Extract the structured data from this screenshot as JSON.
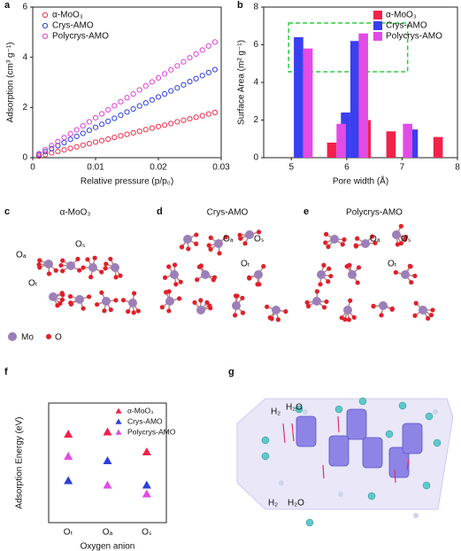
{
  "chart_data": [
    {
      "type": "line",
      "label": "a",
      "xlabel": "Relative pressure (p/p₀)",
      "ylabel": "Adsorption (cm³ g⁻¹)",
      "xlim": [
        0,
        0.03
      ],
      "xticks": [
        0,
        0.01,
        0.02,
        0.03
      ],
      "ylim": [
        0,
        6
      ],
      "yticks": [
        0,
        2,
        4,
        6
      ],
      "legend": "upper left",
      "x": [
        0.001,
        0.002,
        0.003,
        0.004,
        0.005,
        0.006,
        0.007,
        0.008,
        0.009,
        0.01,
        0.011,
        0.012,
        0.013,
        0.014,
        0.015,
        0.016,
        0.017,
        0.018,
        0.019,
        0.02,
        0.021,
        0.022,
        0.023,
        0.024,
        0.025,
        0.026,
        0.027,
        0.028,
        0.029
      ],
      "series": [
        {
          "name": "α-MoO₃",
          "color": "#e8304a",
          "values": [
            0.06,
            0.12,
            0.19,
            0.25,
            0.31,
            0.37,
            0.43,
            0.5,
            0.56,
            0.62,
            0.68,
            0.74,
            0.81,
            0.87,
            0.93,
            0.99,
            1.05,
            1.12,
            1.18,
            1.24,
            1.3,
            1.36,
            1.43,
            1.49,
            1.55,
            1.61,
            1.67,
            1.74,
            1.8
          ]
        },
        {
          "name": "Crys-AMO",
          "color": "#2d3fd8",
          "values": [
            0.12,
            0.24,
            0.36,
            0.48,
            0.6,
            0.73,
            0.85,
            0.97,
            1.09,
            1.21,
            1.33,
            1.45,
            1.57,
            1.69,
            1.82,
            1.94,
            2.06,
            2.18,
            2.3,
            2.42,
            2.54,
            2.66,
            2.78,
            2.9,
            3.03,
            3.15,
            3.27,
            3.39,
            3.51
          ]
        },
        {
          "name": "Polycrys-AMO",
          "color": "#e040d8",
          "values": [
            0.16,
            0.32,
            0.48,
            0.64,
            0.8,
            0.95,
            1.11,
            1.27,
            1.43,
            1.59,
            1.75,
            1.91,
            2.07,
            2.23,
            2.39,
            2.54,
            2.7,
            2.86,
            3.02,
            3.18,
            3.34,
            3.5,
            3.66,
            3.82,
            3.98,
            4.13,
            4.29,
            4.45,
            4.61
          ]
        }
      ]
    },
    {
      "type": "bar",
      "label": "b",
      "xlabel": "Pore width (Å)",
      "ylabel": "Surface Area (m² g⁻¹)",
      "xlim": [
        4.5,
        8
      ],
      "xticks": [
        5,
        6,
        7,
        8
      ],
      "ylim": [
        0,
        8
      ],
      "yticks": [
        0,
        2,
        4,
        6,
        8
      ],
      "legend": "upper right",
      "series": [
        {
          "name": "α-MoO₃",
          "color": "#f2224a",
          "x": [
            5.73,
            6.35,
            6.8,
            7.65
          ],
          "values": [
            0.8,
            2.0,
            1.4,
            1.1
          ]
        },
        {
          "name": "Crys-AMO",
          "color": "#3a3ff0",
          "x": [
            5.13,
            5.98,
            6.15,
            7.2
          ],
          "values": [
            6.4,
            2.4,
            6.2,
            1.5
          ]
        },
        {
          "name": "Polycrys-AMO",
          "color": "#e24be6",
          "x": [
            5.3,
            5.9,
            6.3,
            7.1
          ],
          "values": [
            5.8,
            1.8,
            6.6,
            1.8
          ]
        }
      ]
    },
    {
      "type": "scatter",
      "label": "f",
      "xlabel": "Oxygen anion",
      "ylabel": "Adsorption Energy (eV)",
      "categories": [
        "Oₜ",
        "Oₐ",
        "Oₛ"
      ],
      "ylim": [
        0.6,
        3.3
      ],
      "legend": "upper right",
      "series": [
        {
          "name": "α-MoO₃",
          "color": "#f2224a",
          "values": [
            2.6,
            2.65,
            2.2
          ]
        },
        {
          "name": "Crys-AMO",
          "color": "#2d3fd8",
          "values": [
            1.55,
            2.0,
            1.45
          ]
        },
        {
          "name": "Polycrys-AMO",
          "color": "#e24be6",
          "values": [
            2.1,
            1.45,
            1.25
          ]
        }
      ]
    }
  ],
  "structures": [
    {
      "label": "c",
      "title": "α-MoO₃",
      "atoms": [
        "Oₐ",
        "Oₛ",
        "Oₜ"
      ]
    },
    {
      "label": "d",
      "title": "Crys-AMO",
      "atoms": [
        "Oₐ",
        "Oₛ",
        "Oₜ"
      ]
    },
    {
      "label": "e",
      "title": "Polycrys-AMO",
      "atoms": [
        "Oₐ",
        "Oₛ",
        "Oₜ"
      ]
    }
  ],
  "atom_legend": [
    "Mo",
    "O"
  ],
  "scheme": {
    "label": "g",
    "species": [
      "H₂",
      "H₂O",
      "H₂",
      "H₂O"
    ]
  }
}
